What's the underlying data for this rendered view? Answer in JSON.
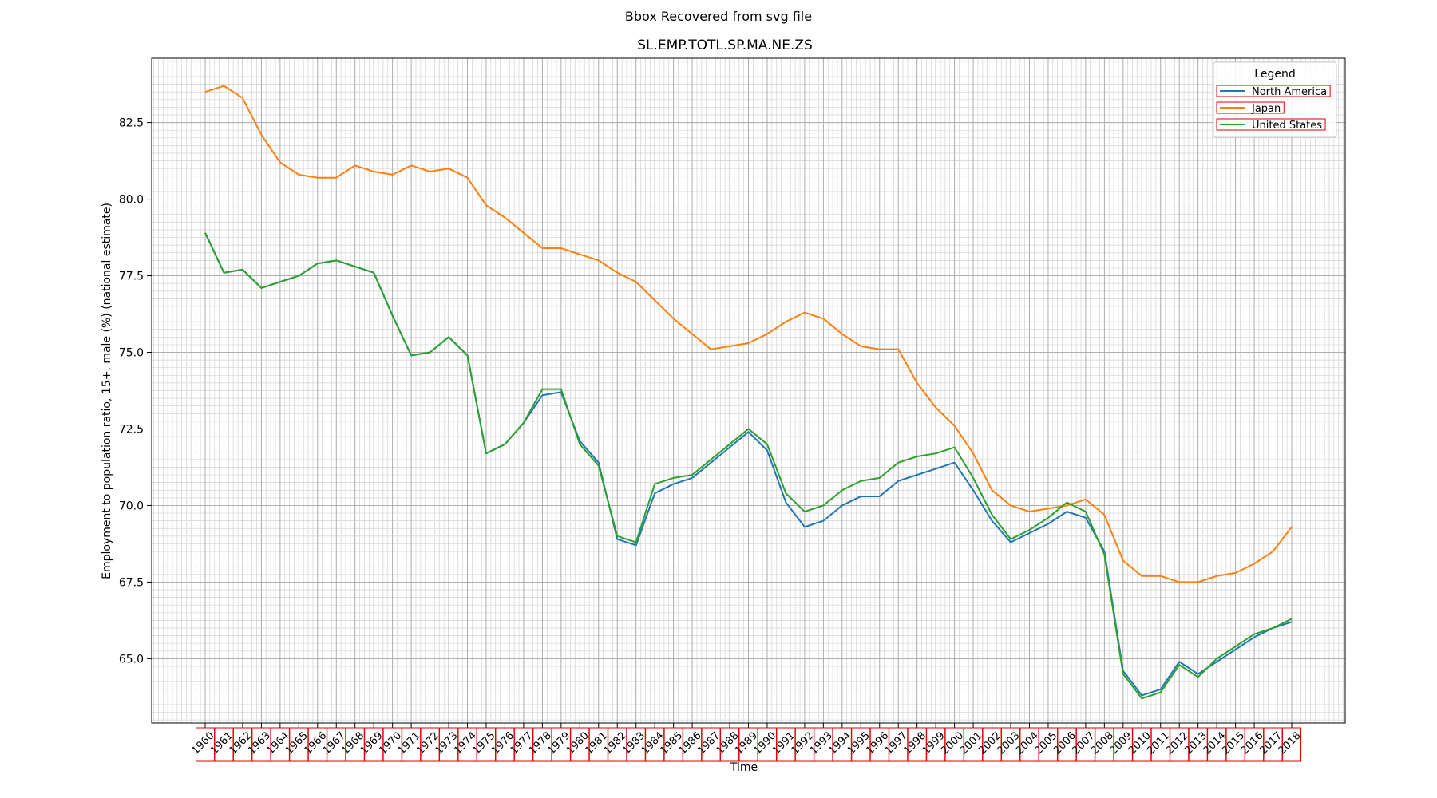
{
  "suptitle": "Bbox Recovered from svg file",
  "chart_data": {
    "type": "line",
    "title": "SL.EMP.TOTL.SP.MA.NE.ZS",
    "xlabel": "Time",
    "ylabel": "Employment to population ratio, 15+, male (%) (national estimate)",
    "ylim": [
      62.9,
      84.6
    ],
    "yticks": [
      65.0,
      67.5,
      70.0,
      72.5,
      75.0,
      77.5,
      80.0,
      82.5
    ],
    "ytick_labels": [
      "65.0",
      "67.5",
      "70.0",
      "72.5",
      "75.0",
      "77.5",
      "80.0",
      "82.5"
    ],
    "grid": true,
    "legend": {
      "title": "Legend",
      "position": "top-right"
    },
    "x": [
      1960,
      1961,
      1962,
      1963,
      1964,
      1965,
      1966,
      1967,
      1968,
      1969,
      1970,
      1971,
      1972,
      1973,
      1974,
      1975,
      1976,
      1977,
      1978,
      1979,
      1980,
      1981,
      1982,
      1983,
      1984,
      1985,
      1986,
      1987,
      1988,
      1989,
      1990,
      1991,
      1992,
      1993,
      1994,
      1995,
      1996,
      1997,
      1998,
      1999,
      2000,
      2001,
      2002,
      2003,
      2004,
      2005,
      2006,
      2007,
      2008,
      2009,
      2010,
      2011,
      2012,
      2013,
      2014,
      2015,
      2016,
      2017,
      2018
    ],
    "x_labels": [
      "1960",
      "1961",
      "1962",
      "1963",
      "1964",
      "1965",
      "1966",
      "1967",
      "1968",
      "1969",
      "1970",
      "1971",
      "1972",
      "1973",
      "1974",
      "1975",
      "1976",
      "1977",
      "1978",
      "1979",
      "1980",
      "1981",
      "1982",
      "1983",
      "1984",
      "1985",
      "1986",
      "1987",
      "1988",
      "1989",
      "1990",
      "1991",
      "1992",
      "1993",
      "1994",
      "1995",
      "1996",
      "1997",
      "1998",
      "1999",
      "2000",
      "2001",
      "2002",
      "2003",
      "2004",
      "2005",
      "2006",
      "2007",
      "2008",
      "2009",
      "2010",
      "2011",
      "2012",
      "2013",
      "2014",
      "2015",
      "2016",
      "2017",
      "2018"
    ],
    "series": [
      {
        "name": "North America",
        "color": "#1f77b4",
        "values": [
          78.9,
          77.6,
          77.7,
          77.1,
          77.3,
          77.5,
          77.9,
          78.0,
          77.8,
          77.6,
          76.2,
          74.9,
          75.0,
          75.5,
          74.9,
          71.7,
          72.0,
          72.7,
          73.6,
          73.7,
          72.1,
          71.4,
          68.9,
          68.7,
          70.4,
          70.7,
          70.9,
          71.4,
          71.9,
          72.4,
          71.8,
          70.1,
          69.3,
          69.5,
          70.0,
          70.3,
          70.3,
          70.8,
          71.0,
          71.2,
          71.4,
          70.5,
          69.5,
          68.8,
          69.1,
          69.4,
          69.8,
          69.6,
          68.5,
          64.6,
          63.8,
          64.0,
          64.9,
          64.5,
          64.9,
          65.3,
          65.7,
          66.0,
          66.2
        ]
      },
      {
        "name": "Japan",
        "color": "#ff7f0e",
        "values": [
          83.5,
          83.7,
          83.3,
          82.1,
          81.2,
          80.8,
          80.7,
          80.7,
          81.1,
          80.9,
          80.8,
          81.1,
          80.9,
          81.0,
          80.7,
          79.8,
          79.4,
          78.9,
          78.4,
          78.4,
          78.2,
          78.0,
          77.6,
          77.3,
          76.7,
          76.1,
          75.6,
          75.1,
          75.2,
          75.3,
          75.6,
          76.0,
          76.3,
          76.1,
          75.6,
          75.2,
          75.1,
          75.1,
          74.0,
          73.2,
          72.6,
          71.7,
          70.5,
          70.0,
          69.8,
          69.9,
          70.0,
          70.2,
          69.7,
          68.2,
          67.7,
          67.7,
          67.5,
          67.5,
          67.7,
          67.8,
          68.1,
          68.5,
          69.3
        ]
      },
      {
        "name": "United States",
        "color": "#2ca02c",
        "values": [
          78.9,
          77.6,
          77.7,
          77.1,
          77.3,
          77.5,
          77.9,
          78.0,
          77.8,
          77.6,
          76.2,
          74.9,
          75.0,
          75.5,
          74.9,
          71.7,
          72.0,
          72.7,
          73.8,
          73.8,
          72.0,
          71.3,
          69.0,
          68.8,
          70.7,
          70.9,
          71.0,
          71.5,
          72.0,
          72.5,
          72.0,
          70.4,
          69.8,
          70.0,
          70.5,
          70.8,
          70.9,
          71.4,
          71.6,
          71.7,
          71.9,
          70.9,
          69.7,
          68.9,
          69.2,
          69.6,
          70.1,
          69.8,
          68.4,
          64.5,
          63.7,
          63.9,
          64.8,
          64.4,
          65.0,
          65.4,
          65.8,
          66.0,
          66.3
        ]
      }
    ]
  }
}
